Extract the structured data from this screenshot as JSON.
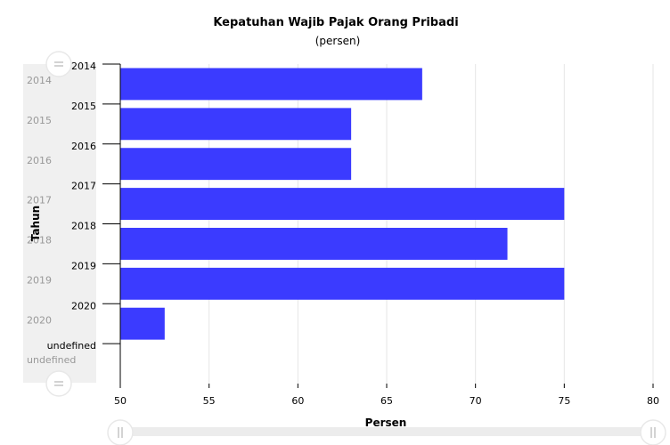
{
  "chart_data": {
    "type": "bar",
    "orientation": "horizontal",
    "title": "Kepatuhan Wajib Pajak Orang Pribadi",
    "subtitle": "(persen)",
    "xlabel": "Persen",
    "ylabel": "Tahun",
    "categories": [
      "2014",
      "2015",
      "2016",
      "2017",
      "2018",
      "2019",
      "2020",
      "undefined"
    ],
    "values": [
      67,
      63,
      63,
      75,
      71.8,
      75,
      52.5,
      null
    ],
    "xlim": [
      50,
      80
    ],
    "x_ticks": [
      "50",
      "55",
      "60",
      "65",
      "70",
      "75",
      "80"
    ],
    "grid": "vertical",
    "bar_color": "#3b3bff",
    "scrollbar": {
      "vertical_labels": [
        "2014",
        "2015",
        "2016",
        "2017",
        "2018",
        "2019",
        "2020",
        "undefined"
      ]
    }
  }
}
